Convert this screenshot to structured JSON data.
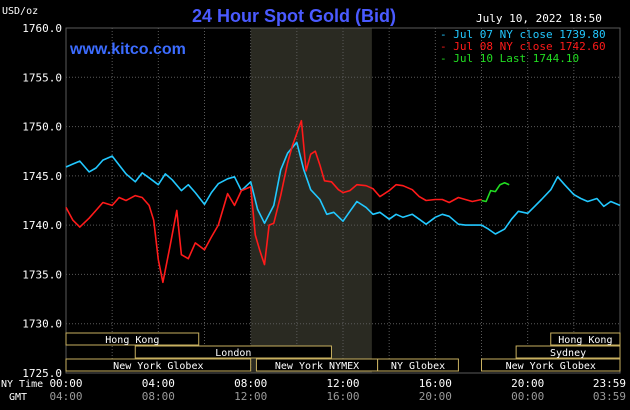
{
  "header": {
    "title": "24 Hour Spot Gold (Bid)",
    "unit_label": "USD/oz",
    "timestamp": "July 10, 2022 18:50",
    "watermark": "www.kitco.com"
  },
  "colors": {
    "background": "#000000",
    "grid": "#5a5a5a",
    "axis_text": "#ffffff",
    "title": "#4a5aff",
    "watermark": "#3c6cff",
    "series_jul07": "#22c8ff",
    "series_jul08": "#ff1a1a",
    "series_jul10": "#22dd22",
    "session_fill": "#2a2a12",
    "session_bar": "#000000",
    "session_border": "#c8b060",
    "session_text": "#ffffff",
    "ny_band": "#2a2a22"
  },
  "legend": {
    "entries": [
      {
        "key": "jul07",
        "text": "- Jul 07 NY close 1739.80",
        "color": "#22c8ff"
      },
      {
        "key": "jul08",
        "text": "- Jul 08 NY close 1742.60",
        "color": "#ff1a1a"
      },
      {
        "key": "jul10",
        "text": "- Jul 10 Last 1744.10",
        "color": "#22dd22"
      }
    ]
  },
  "sessions": [
    {
      "label": "Hong Kong",
      "start": 0,
      "end": 5.75,
      "row": 0
    },
    {
      "label": "Hong Kong",
      "start": 21.0,
      "end": 24.0,
      "row": 0
    },
    {
      "label": "London",
      "start": 3.0,
      "end": 11.5,
      "row": 1
    },
    {
      "label": "Sydney",
      "start": 19.5,
      "end": 24.0,
      "row": 1
    },
    {
      "label": "New York Globex",
      "start": 0,
      "end": 8.0,
      "row": 2
    },
    {
      "label": "New York NYMEX",
      "start": 8.25,
      "end": 13.5,
      "row": 2
    },
    {
      "label": "NY Globex",
      "start": 13.5,
      "end": 17.0,
      "row": 2
    },
    {
      "label": "New York Globex",
      "start": 18.0,
      "end": 24.0,
      "row": 2
    }
  ],
  "bottom_axis": {
    "ny_time_label": "NY Time",
    "gmt_label": "GMT",
    "ny_ticks": [
      "00:00",
      "04:00",
      "08:00",
      "12:00",
      "16:00",
      "20:00",
      "23:59"
    ],
    "gmt_ticks": [
      "04:00",
      "08:00",
      "12:00",
      "16:00",
      "20:00",
      "00:00",
      "03:59"
    ]
  },
  "chart_data": {
    "type": "line",
    "title": "24 Hour Spot Gold (Bid)",
    "ylabel": "USD/oz",
    "xlabel": "NY Time",
    "ylim": [
      1725.0,
      1760.0
    ],
    "xlim": [
      0,
      24
    ],
    "y_ticks": [
      "1760.0",
      "1755.0",
      "1750.0",
      "1745.0",
      "1740.0",
      "1735.0",
      "1730.0",
      "1725.0"
    ],
    "y_tick_values": [
      1760,
      1755,
      1750,
      1745,
      1740,
      1735,
      1730,
      1725
    ],
    "x_ticks": [
      "00:00",
      "04:00",
      "08:00",
      "12:00",
      "16:00",
      "20:00",
      "23:59"
    ],
    "x_tick_values": [
      0,
      4,
      8,
      12,
      16,
      20,
      24
    ],
    "grid": true,
    "legend_position": "top-right",
    "shaded_band_hours": [
      8.0,
      13.25
    ],
    "series": [
      {
        "name": "Jul 07 NY close 1739.80",
        "key": "jul07",
        "color": "#22c8ff",
        "x": [
          0,
          0.3,
          0.6,
          1.0,
          1.3,
          1.6,
          2.0,
          2.3,
          2.6,
          3.0,
          3.3,
          3.6,
          4.0,
          4.3,
          4.6,
          5.0,
          5.3,
          5.6,
          6.0,
          6.3,
          6.6,
          7.0,
          7.3,
          7.6,
          8.0,
          8.3,
          8.6,
          9.0,
          9.3,
          9.6,
          10.0,
          10.3,
          10.6,
          11.0,
          11.3,
          11.6,
          12.0,
          12.3,
          12.6,
          13.0,
          13.3,
          13.6,
          14.0,
          14.3,
          14.6,
          15.0,
          15.3,
          15.6,
          16.0,
          16.3,
          16.6,
          17.0,
          17.3,
          17.6,
          18.0,
          18.3,
          18.6,
          19.0,
          19.3,
          19.6,
          20.0,
          20.3,
          20.6,
          21.0,
          21.3,
          21.6,
          22.0,
          22.3,
          22.6,
          23.0,
          23.3,
          23.6,
          24.0
        ],
        "values": [
          1745.9,
          1746.2,
          1746.5,
          1745.4,
          1745.8,
          1746.6,
          1747.0,
          1746.1,
          1745.2,
          1744.4,
          1745.3,
          1744.8,
          1744.1,
          1745.2,
          1744.6,
          1743.5,
          1744.1,
          1743.3,
          1742.1,
          1743.3,
          1744.2,
          1744.7,
          1744.9,
          1743.5,
          1744.4,
          1741.6,
          1740.2,
          1742.0,
          1745.6,
          1747.3,
          1748.4,
          1745.6,
          1743.6,
          1742.6,
          1741.1,
          1741.3,
          1740.4,
          1741.4,
          1742.4,
          1741.8,
          1741.1,
          1741.3,
          1740.6,
          1741.1,
          1740.8,
          1741.1,
          1740.6,
          1740.1,
          1740.8,
          1741.1,
          1740.9,
          1740.1,
          1740.0,
          1740.0,
          1740.0,
          1739.6,
          1739.1,
          1739.6,
          1740.6,
          1741.4,
          1741.2,
          1741.9,
          1742.6,
          1743.6,
          1744.9,
          1744.1,
          1743.1,
          1742.7,
          1742.4,
          1742.7,
          1741.9,
          1742.4,
          1742.0
        ]
      },
      {
        "name": "Jul 08 NY close 1742.60",
        "key": "jul08",
        "color": "#ff1a1a",
        "x": [
          0,
          0.3,
          0.6,
          1.0,
          1.3,
          1.6,
          2.0,
          2.3,
          2.6,
          3.0,
          3.3,
          3.6,
          3.8,
          4.0,
          4.2,
          4.5,
          4.8,
          5.0,
          5.3,
          5.6,
          6.0,
          6.3,
          6.6,
          7.0,
          7.3,
          7.6,
          8.0,
          8.2,
          8.4,
          8.6,
          8.8,
          9.0,
          9.3,
          9.6,
          9.8,
          10.0,
          10.2,
          10.4,
          10.6,
          10.8,
          11.0,
          11.2,
          11.5,
          11.8,
          12.0,
          12.3,
          12.6,
          13.0,
          13.3,
          13.6,
          14.0,
          14.3,
          14.6,
          15.0,
          15.3,
          15.6,
          16.0,
          16.3,
          16.6,
          17.0,
          17.3,
          17.6,
          18.0
        ],
        "values": [
          1741.8,
          1740.5,
          1739.8,
          1740.7,
          1741.5,
          1742.3,
          1742.0,
          1742.8,
          1742.5,
          1743.0,
          1742.8,
          1742.0,
          1740.5,
          1736.5,
          1734.2,
          1737.8,
          1741.5,
          1737.0,
          1736.6,
          1738.2,
          1737.5,
          1738.8,
          1740.0,
          1743.2,
          1742.0,
          1743.5,
          1743.9,
          1739.0,
          1737.4,
          1736.0,
          1740.0,
          1740.2,
          1743.0,
          1746.3,
          1748.0,
          1749.3,
          1750.6,
          1745.5,
          1747.2,
          1747.5,
          1746.1,
          1744.5,
          1744.4,
          1743.6,
          1743.3,
          1743.5,
          1744.1,
          1744.0,
          1743.7,
          1742.9,
          1743.5,
          1744.1,
          1744.0,
          1743.6,
          1742.9,
          1742.5,
          1742.6,
          1742.6,
          1742.3,
          1742.8,
          1742.6,
          1742.4,
          1742.6
        ]
      },
      {
        "name": "Jul 10 Last 1744.10",
        "key": "jul10",
        "color": "#22dd22",
        "x": [
          18.0,
          18.2,
          18.4,
          18.6,
          18.8,
          19.0,
          19.2
        ],
        "values": [
          1742.5,
          1742.4,
          1743.5,
          1743.4,
          1744.1,
          1744.3,
          1744.1
        ]
      }
    ]
  }
}
